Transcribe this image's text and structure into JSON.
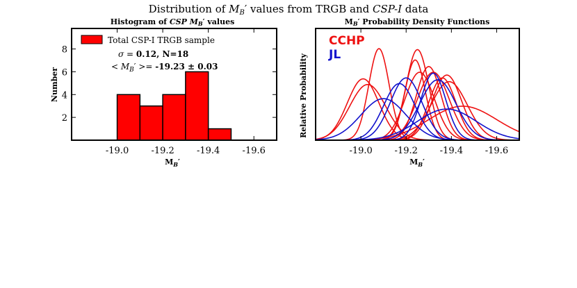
{
  "figure": {
    "suptitle": "Distribution of M_B′ values from TRGB and CSP-I data"
  },
  "chart_data": [
    {
      "type": "bar",
      "panel": "left",
      "title": "Histogram of CSP M_B′ values",
      "xlabel": "M_B′",
      "ylabel": "Number",
      "xlim": [
        -18.8,
        -19.7
      ],
      "ylim": [
        0,
        9.8
      ],
      "xticks": [
        -19.0,
        -19.2,
        -19.4,
        -19.6
      ],
      "xtick_labels": [
        "-19.0",
        "-19.2",
        "-19.4",
        "-19.6"
      ],
      "yticks": [
        2,
        4,
        6,
        8
      ],
      "ytick_labels": [
        "2",
        "4",
        "6",
        "8"
      ],
      "bin_edges": [
        -19.0,
        -19.1,
        -19.2,
        -19.3,
        -19.4,
        -19.5
      ],
      "values": [
        4,
        3,
        4,
        6,
        1
      ],
      "bar_color": "#ff0000",
      "legend": {
        "label": "Total CSP-I TRGB sample",
        "placement": "top-left"
      },
      "annotations": [
        {
          "text": "σ = 0.12, N=18"
        },
        {
          "text": "< M_B′ >= -19.23 ± 0.03"
        }
      ]
    },
    {
      "type": "line",
      "panel": "right",
      "title": "M_B′ Probability Density Functions",
      "xlabel": "M_B′",
      "ylabel": "Relative Probability",
      "xlim": [
        -18.8,
        -19.7
      ],
      "xticks": [
        -19.0,
        -19.2,
        -19.4,
        -19.6
      ],
      "xtick_labels": [
        "-19.0",
        "-19.2",
        "-19.4",
        "-19.6"
      ],
      "labels": [
        {
          "text": "CCHP",
          "color": "#ee1111"
        },
        {
          "text": "JL",
          "color": "#1111cc"
        }
      ],
      "series": [
        {
          "group": "CCHP",
          "color": "#ee1111",
          "mu": -19.01,
          "sigma": 0.07,
          "peak": 0.65
        },
        {
          "group": "CCHP",
          "color": "#ee1111",
          "mu": -19.03,
          "sigma": 0.08,
          "peak": 0.59
        },
        {
          "group": "CCHP",
          "color": "#ee1111",
          "mu": -19.08,
          "sigma": 0.045,
          "peak": 0.97
        },
        {
          "group": "CCHP",
          "color": "#ee1111",
          "mu": -19.24,
          "sigma": 0.045,
          "peak": 0.85
        },
        {
          "group": "CCHP",
          "color": "#ee1111",
          "mu": -19.25,
          "sigma": 0.05,
          "peak": 0.96
        },
        {
          "group": "CCHP",
          "color": "#ee1111",
          "mu": -19.26,
          "sigma": 0.065,
          "peak": 0.72
        },
        {
          "group": "CCHP",
          "color": "#ee1111",
          "mu": -19.3,
          "sigma": 0.055,
          "peak": 0.78
        },
        {
          "group": "CCHP",
          "color": "#ee1111",
          "mu": -19.32,
          "sigma": 0.07,
          "peak": 0.72
        },
        {
          "group": "CCHP",
          "color": "#ee1111",
          "mu": -19.36,
          "sigma": 0.06,
          "peak": 0.66
        },
        {
          "group": "CCHP",
          "color": "#ee1111",
          "mu": -19.38,
          "sigma": 0.065,
          "peak": 0.69
        },
        {
          "group": "CCHP",
          "color": "#ee1111",
          "mu": -19.39,
          "sigma": 0.08,
          "peak": 0.62
        },
        {
          "group": "CCHP",
          "color": "#ee1111",
          "mu": -19.45,
          "sigma": 0.15,
          "peak": 0.36
        },
        {
          "group": "JL",
          "color": "#1111cc",
          "mu": -19.1,
          "sigma": 0.1,
          "peak": 0.44
        },
        {
          "group": "JL",
          "color": "#1111cc",
          "mu": -19.17,
          "sigma": 0.07,
          "peak": 0.6
        },
        {
          "group": "JL",
          "color": "#1111cc",
          "mu": -19.2,
          "sigma": 0.07,
          "peak": 0.66
        },
        {
          "group": "JL",
          "color": "#1111cc",
          "mu": -19.32,
          "sigma": 0.055,
          "peak": 0.71
        },
        {
          "group": "JL",
          "color": "#1111cc",
          "mu": -19.34,
          "sigma": 0.08,
          "peak": 0.64
        },
        {
          "group": "JL",
          "color": "#1111cc",
          "mu": -19.38,
          "sigma": 0.13,
          "peak": 0.33
        }
      ]
    }
  ]
}
